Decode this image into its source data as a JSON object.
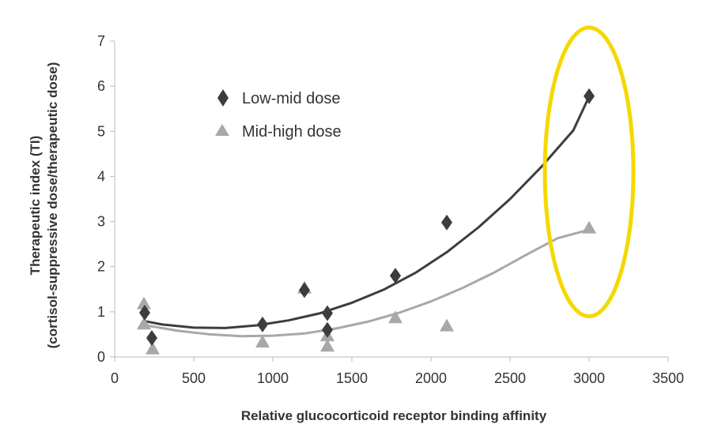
{
  "chart_data": {
    "type": "scatter",
    "xlabel": "Relative glucocorticoid receptor binding affinity",
    "ylabel_line1": "Therapeutic index (TI)",
    "ylabel_line2": "(cortisol-suppressive dose/therapeutic dose)",
    "xlim": [
      0,
      3500
    ],
    "ylim": [
      0,
      7
    ],
    "x_ticks": [
      0,
      500,
      1000,
      1500,
      2000,
      2500,
      3000,
      3500
    ],
    "y_ticks": [
      0,
      1,
      2,
      3,
      4,
      5,
      6,
      7
    ],
    "grid": false,
    "legend_position": "upper-left",
    "series": [
      {
        "name": "Low-mid dose",
        "marker": "diamond",
        "color": "#3d3d3d",
        "points": [
          {
            "x": 190,
            "y": 0.98
          },
          {
            "x": 235,
            "y": 0.42
          },
          {
            "x": 935,
            "y": 0.72
          },
          {
            "x": 1200,
            "y": 1.48
          },
          {
            "x": 1345,
            "y": 0.97
          },
          {
            "x": 1345,
            "y": 0.6
          },
          {
            "x": 1775,
            "y": 1.8
          },
          {
            "x": 2100,
            "y": 2.98
          },
          {
            "x": 3000,
            "y": 5.78
          }
        ],
        "trend": [
          [
            180,
            0.8
          ],
          [
            300,
            0.72
          ],
          [
            500,
            0.65
          ],
          [
            700,
            0.64
          ],
          [
            900,
            0.7
          ],
          [
            1100,
            0.81
          ],
          [
            1300,
            0.97
          ],
          [
            1500,
            1.2
          ],
          [
            1700,
            1.49
          ],
          [
            1900,
            1.86
          ],
          [
            2100,
            2.32
          ],
          [
            2300,
            2.87
          ],
          [
            2500,
            3.5
          ],
          [
            2700,
            4.22
          ],
          [
            2900,
            5.02
          ],
          [
            3000,
            5.77
          ]
        ]
      },
      {
        "name": "Mid-high dose",
        "marker": "triangle",
        "color": "#a8a8a8",
        "points": [
          {
            "x": 185,
            "y": 1.18
          },
          {
            "x": 185,
            "y": 0.73
          },
          {
            "x": 240,
            "y": 0.18
          },
          {
            "x": 935,
            "y": 0.33
          },
          {
            "x": 1200,
            "y": 1.53
          },
          {
            "x": 1345,
            "y": 0.47
          },
          {
            "x": 1345,
            "y": 0.24
          },
          {
            "x": 1775,
            "y": 0.87
          },
          {
            "x": 2100,
            "y": 0.69
          },
          {
            "x": 3000,
            "y": 2.86
          }
        ],
        "trend": [
          [
            180,
            0.71
          ],
          [
            400,
            0.58
          ],
          [
            600,
            0.5
          ],
          [
            800,
            0.46
          ],
          [
            1000,
            0.47
          ],
          [
            1200,
            0.52
          ],
          [
            1400,
            0.63
          ],
          [
            1600,
            0.78
          ],
          [
            1800,
            0.98
          ],
          [
            2000,
            1.23
          ],
          [
            2200,
            1.53
          ],
          [
            2400,
            1.87
          ],
          [
            2600,
            2.26
          ],
          [
            2800,
            2.63
          ],
          [
            3000,
            2.82
          ]
        ]
      }
    ],
    "annotation": {
      "shape": "ellipse",
      "color": "#f5d800",
      "center": {
        "x": 3000,
        "y": 4.1
      },
      "rx_data": 280,
      "ry_data": 3.2
    }
  }
}
